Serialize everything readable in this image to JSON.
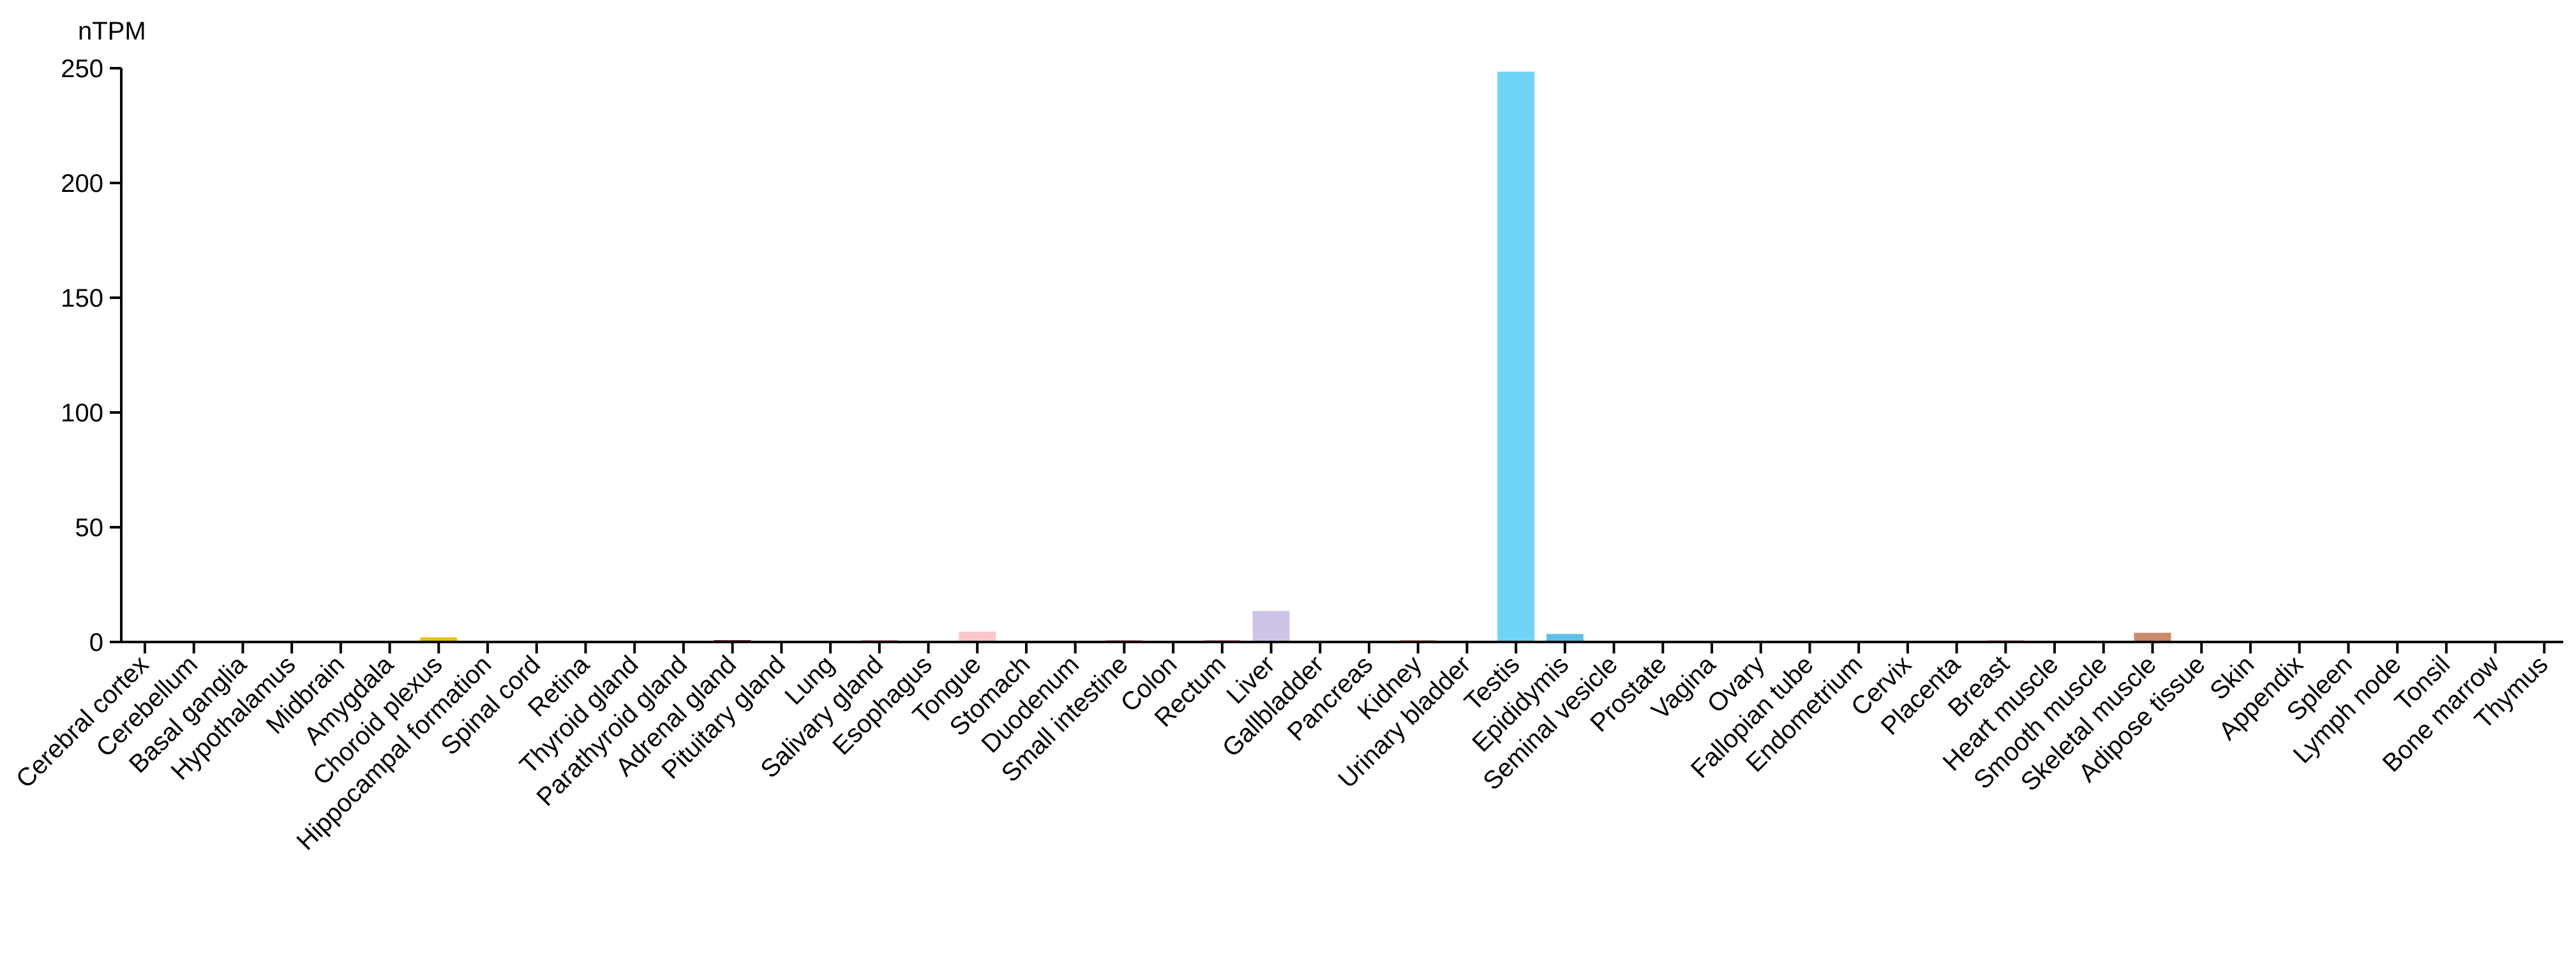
{
  "chart_data": {
    "type": "bar",
    "unit_label": "nTPM",
    "ylim": [
      0,
      250
    ],
    "yticks": [
      0,
      50,
      100,
      150,
      200,
      250
    ],
    "grid": false,
    "legend": "none",
    "categories": [
      "Cerebral cortex",
      "Cerebellum",
      "Basal ganglia",
      "Hypothalamus",
      "Midbrain",
      "Amygdala",
      "Choroid plexus",
      "Hippocampal formation",
      "Spinal cord",
      "Retina",
      "Thyroid gland",
      "Parathyroid gland",
      "Adrenal gland",
      "Pituitary gland",
      "Lung",
      "Salivary gland",
      "Esophagus",
      "Tongue",
      "Stomach",
      "Duodenum",
      "Small intestine",
      "Colon",
      "Rectum",
      "Liver",
      "Gallbladder",
      "Pancreas",
      "Kidney",
      "Urinary bladder",
      "Testis",
      "Epididymis",
      "Seminal vesicle",
      "Prostate",
      "Vagina",
      "Ovary",
      "Fallopian tube",
      "Endometrium",
      "Cervix",
      "Placenta",
      "Breast",
      "Heart muscle",
      "Smooth muscle",
      "Skeletal muscle",
      "Adipose tissue",
      "Skin",
      "Appendix",
      "Spleen",
      "Lymph node",
      "Tonsil",
      "Bone marrow",
      "Thymus"
    ],
    "values": [
      0,
      0,
      0,
      0,
      0,
      0,
      2,
      0,
      0,
      0,
      0,
      0,
      0.5,
      0,
      0,
      0.5,
      0,
      4.5,
      0,
      0,
      0.5,
      0,
      0.5,
      13.5,
      0,
      0,
      0.5,
      0,
      248.5,
      3.5,
      0,
      0,
      0,
      0,
      0,
      0,
      0,
      0,
      0.5,
      0,
      0,
      4,
      0,
      0,
      0,
      0,
      0,
      0,
      0,
      0
    ],
    "colors": [
      "#f3c86b",
      "#f3c86b",
      "#f3c86b",
      "#f3c86b",
      "#f3c86b",
      "#f3c86b",
      "#e5c200",
      "#f3c86b",
      "#f3c86b",
      "#f3c86b",
      "#b8a0d8",
      "#b8a0d8",
      "#8b2f3a",
      "#b8a0d8",
      "#7ec4e4",
      "#e79fa0",
      "#e79fa0",
      "#f8c8cc",
      "#e79fa0",
      "#e79fa0",
      "#e79fa0",
      "#e79fa0",
      "#e79fa0",
      "#cdc4e6",
      "#cdc4e6",
      "#cdc4e6",
      "#e8a87c",
      "#e8a87c",
      "#6fd4f5",
      "#5ec0ea",
      "#6fd4f5",
      "#6fd4f5",
      "#f5b4c8",
      "#f5b4c8",
      "#f5b4c8",
      "#f5b4c8",
      "#f5b4c8",
      "#f5b4c8",
      "#f5b4c8",
      "#c98a68",
      "#c98a68",
      "#c98a68",
      "#c8c8c8",
      "#9ad0d0",
      "#f0a070",
      "#f0a070",
      "#f0a070",
      "#f0a070",
      "#f0a070",
      "#f0a070"
    ]
  }
}
